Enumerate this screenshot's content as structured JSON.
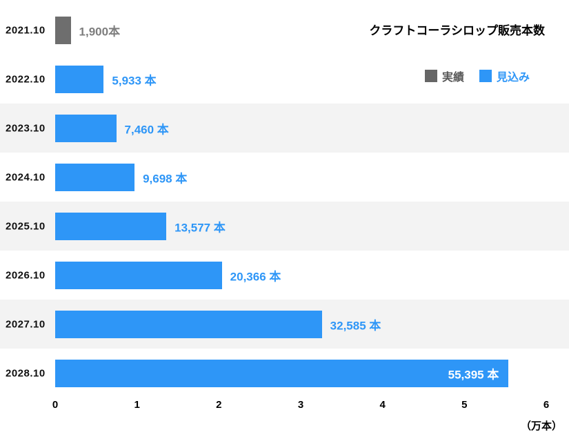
{
  "title": "クラフトコーラシロップ販売本数",
  "legend": [
    {
      "label": "実績",
      "color": "#666666",
      "text_color": "#595959"
    },
    {
      "label": "見込み",
      "color": "#2e96f7",
      "text_color": "#2e96f7"
    }
  ],
  "axis": {
    "ticks": [
      "0",
      "1",
      "2",
      "3",
      "4",
      "5",
      "6"
    ],
    "unit": "（万本）",
    "max_value": 60000
  },
  "colors": {
    "actual": "#6e6e6e",
    "actual_text": "#7d7d7d",
    "forecast": "#2e96f7",
    "inside_label": "#ffffff",
    "stripe": "#f3f3f3"
  },
  "chart_data": {
    "type": "bar",
    "orientation": "horizontal",
    "title": "クラフトコーラシロップ販売本数",
    "categories": [
      "2021.10",
      "2022.10",
      "2023.10",
      "2024.10",
      "2025.10",
      "2026.10",
      "2027.10",
      "2028.10"
    ],
    "values": [
      1900,
      5933,
      7460,
      9698,
      13577,
      20366,
      32585,
      55395
    ],
    "value_labels": [
      "1,900本",
      "5,933 本",
      "7,460 本",
      "9,698 本",
      "13,577 本",
      "20,366 本",
      "32,585 本",
      "55,395 本"
    ],
    "series": [
      "実績",
      "見込み",
      "見込み",
      "見込み",
      "見込み",
      "見込み",
      "見込み",
      "見込み"
    ],
    "legend_entries": [
      "実績",
      "見込み"
    ],
    "xlabel": "（万本）",
    "ylabel": "",
    "xlim": [
      0,
      60000
    ],
    "x_tick_values": [
      0,
      10000,
      20000,
      30000,
      40000,
      50000,
      60000
    ],
    "grid": false,
    "legend_position": "top-right"
  }
}
